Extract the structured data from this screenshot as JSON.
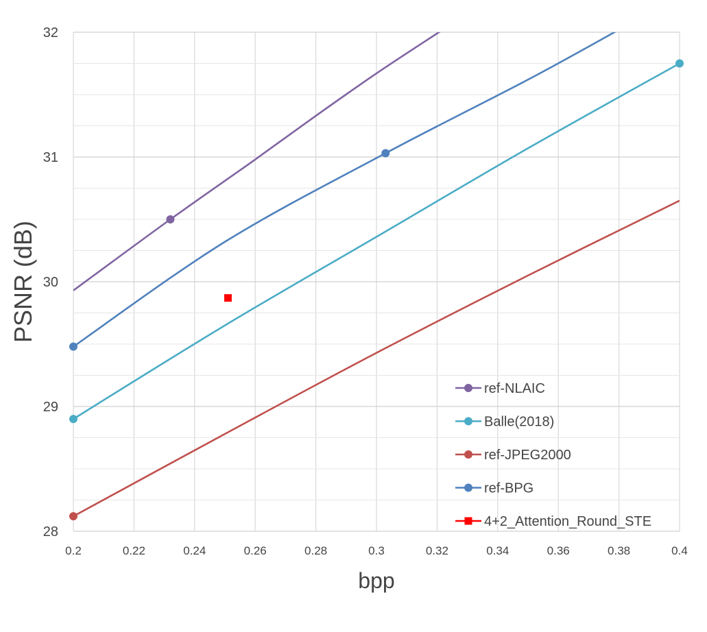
{
  "chart_data": {
    "type": "line",
    "title": "",
    "xlabel": "bpp",
    "ylabel": "PSNR (dB)",
    "xlim": [
      0.2,
      0.4
    ],
    "ylim": [
      28,
      32
    ],
    "xticks": [
      "0.2",
      "0.22",
      "0.24",
      "0.26",
      "0.28",
      "0.3",
      "0.32",
      "0.34",
      "0.36",
      "0.38",
      "0.4"
    ],
    "yticks": [
      "28",
      "29",
      "30",
      "31",
      "32"
    ],
    "grid": true,
    "legend_position": "bottom-right",
    "series": [
      {
        "name": "ref-NLAIC",
        "color": "#8064a2",
        "marker": "circle",
        "curve": [
          [
            0.2,
            29.93
          ],
          [
            0.232,
            30.5
          ],
          [
            0.26,
            30.98
          ],
          [
            0.28,
            31.33
          ],
          [
            0.3,
            31.67
          ],
          [
            0.32,
            31.99
          ],
          [
            0.322,
            32.02
          ]
        ],
        "points": [
          [
            0.232,
            30.5
          ]
        ]
      },
      {
        "name": "Balle(2018)",
        "color": "#4bacc6",
        "marker": "circle",
        "curve": [
          [
            0.2,
            28.9
          ],
          [
            0.25,
            29.65
          ],
          [
            0.3,
            30.36
          ],
          [
            0.35,
            31.07
          ],
          [
            0.4,
            31.75
          ]
        ],
        "points": [
          [
            0.2,
            28.9
          ],
          [
            0.4,
            31.75
          ]
        ]
      },
      {
        "name": "ref-JPEG2000",
        "color": "#c0504d",
        "marker": "circle",
        "curve": [
          [
            0.2,
            28.12
          ],
          [
            0.25,
            28.78
          ],
          [
            0.3,
            29.43
          ],
          [
            0.35,
            30.05
          ],
          [
            0.4,
            30.65
          ]
        ],
        "points": [
          [
            0.2,
            28.12
          ]
        ]
      },
      {
        "name": "ref-BPG",
        "color": "#4f81bd",
        "marker": "circle",
        "curve": [
          [
            0.2,
            29.48
          ],
          [
            0.25,
            30.32
          ],
          [
            0.303,
            31.03
          ],
          [
            0.35,
            31.62
          ],
          [
            0.38,
            32.02
          ]
        ],
        "points": [
          [
            0.2,
            29.48
          ],
          [
            0.303,
            31.03
          ]
        ]
      },
      {
        "name": "4+2_Attention_Round_STE",
        "color": "#ff0000",
        "marker": "square",
        "curve": [],
        "points": [
          [
            0.251,
            29.87
          ]
        ]
      }
    ]
  }
}
